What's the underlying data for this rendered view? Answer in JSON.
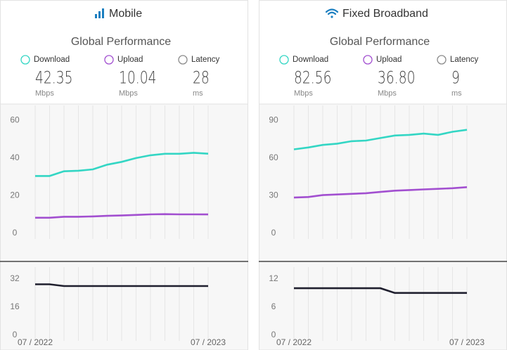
{
  "panels": [
    {
      "title": "Mobile",
      "subtitle": "Global Performance",
      "metrics": [
        {
          "label": "Download",
          "value": "42.35",
          "unit": "Mbps"
        },
        {
          "label": "Upload",
          "value": "10.04",
          "unit": "Mbps"
        },
        {
          "label": "Latency",
          "value": "28",
          "unit": "ms"
        }
      ]
    },
    {
      "title": "Fixed Broadband",
      "subtitle": "Global Performance",
      "metrics": [
        {
          "label": "Download",
          "value": "82.56",
          "unit": "Mbps"
        },
        {
          "label": "Upload",
          "value": "36.80",
          "unit": "Mbps"
        },
        {
          "label": "Latency",
          "value": "9",
          "unit": "ms"
        }
      ]
    }
  ],
  "chart_data": [
    {
      "type": "line",
      "ylim": [
        0,
        68
      ],
      "yticks": [
        0,
        20,
        40,
        60
      ],
      "series": [
        {
          "color": "#33d6c4",
          "values": [
            30.5,
            30.5,
            33,
            33.3,
            34,
            36.5,
            38,
            40,
            41.5,
            42.3,
            42.3,
            42.8,
            42.35
          ]
        },
        {
          "color": "#a24fd0",
          "values": [
            8.3,
            8.3,
            8.8,
            8.8,
            9,
            9.3,
            9.5,
            9.8,
            10.1,
            10.2,
            10.1,
            10.1,
            10.04
          ]
        }
      ]
    },
    {
      "type": "line",
      "ylim": [
        0,
        38.8
      ],
      "yticks": [
        0,
        16,
        32
      ],
      "categories": [
        "07 / 2022",
        null,
        null,
        null,
        null,
        null,
        null,
        null,
        null,
        null,
        null,
        null,
        "07 / 2023"
      ],
      "series": [
        {
          "color": "#1f1f2e",
          "values": [
            29,
            29,
            28,
            28,
            28,
            28,
            28,
            28,
            28,
            28,
            28,
            28,
            28
          ]
        }
      ]
    },
    {
      "type": "line",
      "ylim": [
        0,
        102
      ],
      "yticks": [
        0,
        30,
        60,
        90
      ],
      "series": [
        {
          "color": "#33d6c4",
          "values": [
            67,
            68.5,
            70.5,
            71.5,
            73.5,
            74,
            76,
            78,
            78.5,
            79.5,
            78.5,
            81,
            82.56
          ]
        },
        {
          "color": "#a24fd0",
          "values": [
            28.5,
            29,
            30.5,
            31,
            31.5,
            32,
            33,
            34,
            34.5,
            35,
            35.5,
            36,
            36.8
          ]
        }
      ]
    },
    {
      "type": "line",
      "ylim": [
        0,
        14.5
      ],
      "yticks": [
        0,
        6,
        12
      ],
      "categories": [
        "07 / 2022",
        null,
        null,
        null,
        null,
        null,
        null,
        null,
        null,
        null,
        null,
        null,
        "07 / 2023"
      ],
      "series": [
        {
          "color": "#1f1f2e",
          "values": [
            10,
            10,
            10,
            10,
            10,
            10,
            10,
            9,
            9,
            9,
            9,
            9,
            9
          ]
        }
      ]
    }
  ]
}
